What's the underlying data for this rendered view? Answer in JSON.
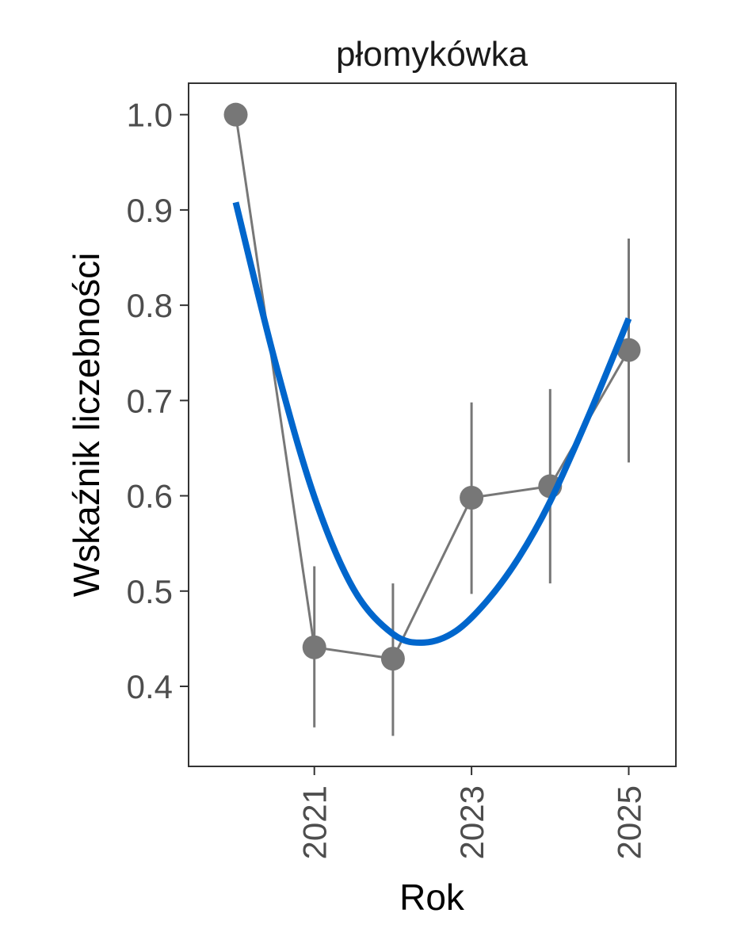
{
  "chart_data": {
    "type": "line",
    "title": "płomykówka",
    "xlabel": "Rok",
    "ylabel": "Wskaźnik liczebności",
    "xlim": [
      2019.4,
      2025.6
    ],
    "ylim": [
      0.316,
      1.033
    ],
    "x_ticks": [
      2021,
      2023,
      2025
    ],
    "x_tick_labels": [
      "2021",
      "2023",
      "2025"
    ],
    "y_ticks": [
      0.4,
      0.5,
      0.6,
      0.7,
      0.8,
      0.9,
      1.0
    ],
    "y_tick_labels": [
      "0.4",
      "0.5",
      "0.6",
      "0.7",
      "0.8",
      "0.9",
      "1.0"
    ],
    "grid": false,
    "series": [
      {
        "kind": "points_with_error_bars",
        "color": "#777777",
        "x": [
          2020,
          2021,
          2022,
          2023,
          2024,
          2025
        ],
        "y": [
          1.0,
          0.441,
          0.429,
          0.598,
          0.61,
          0.753
        ],
        "lower": [
          null,
          0.357,
          0.348,
          0.497,
          0.508,
          0.635
        ],
        "upper": [
          null,
          0.526,
          0.508,
          0.698,
          0.712,
          0.87
        ]
      },
      {
        "kind": "trend",
        "color": "#0066CC",
        "x": [
          2020,
          2020.5,
          2021,
          2021.5,
          2022,
          2022.4,
          2022.8,
          2023.2,
          2023.6,
          2024,
          2024.5,
          2025
        ],
        "y": [
          0.908,
          0.741,
          0.599,
          0.502,
          0.455,
          0.446,
          0.458,
          0.49,
          0.535,
          0.594,
          0.686,
          0.786
        ]
      }
    ]
  }
}
